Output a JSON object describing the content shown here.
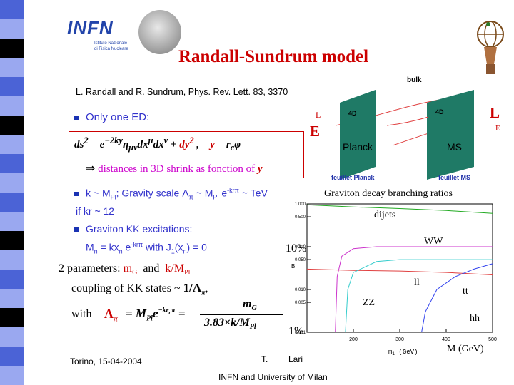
{
  "header": {
    "logo_letters": "INFN",
    "logo_subtitle_1": "Istituto Nazionale",
    "logo_subtitle_2": "di Fisica Nucleare",
    "title": "Randall-Sundrum model"
  },
  "colors": {
    "stripe_light": "#9aa8f0",
    "stripe_mid": "#4b63d6",
    "stripe_black": "#000000",
    "title": "#cc0000",
    "body_text": "#3333cc",
    "highlight": "#cc00cc"
  },
  "reference": "L. Randall and R. Sundrum, Phys. Rev. Lett. 83, 3370",
  "bullets": {
    "only_one_ed": "Only one ED:",
    "distances_note": "distances in 3D shrink as fonction of",
    "distances_var": "y",
    "k_line_a": "k ~ M",
    "k_line_b": "Pl",
    "k_line_c": ";  Gravity scale Λ",
    "k_line_d": "π",
    "k_line_e": " ~ M",
    "k_line_f": "Pl",
    "k_line_g": " e",
    "k_line_h": "-krπ",
    "k_line_i": " ~ TeV",
    "if_kr": "if kr ~ 12",
    "graviton_kk": "Graviton KK excitations:",
    "mn_a": "M",
    "mn_b": "n",
    "mn_c": " = kx",
    "mn_d": "n",
    "mn_e": " e",
    "mn_f": "-krπ",
    "mn_g": "  with J",
    "mn_h": "1",
    "mn_i": "(x",
    "mn_j": "n",
    "mn_k": ") = 0"
  },
  "params": {
    "label": "2 parameters:",
    "p1": "m",
    "p1_sub": "G",
    "and": "and",
    "p2a": "k/M",
    "p2_sub": "Pl",
    "coupling": "coupling of KK states ~",
    "coupling_frac": "1/Λ",
    "coupling_sub": "π",
    "coupling_tail": ",",
    "with": "with",
    "num": "m",
    "num_sub": "G",
    "den": "3.83×k/M",
    "den_sub": "Pl"
  },
  "diagram": {
    "bulk": "bulk",
    "left_L": "L",
    "left_E": "E",
    "right_L": "L",
    "right_E": "E",
    "brane_left_tag": "4D",
    "brane_right_tag": "4D",
    "planck": "Planck",
    "ms": "MS",
    "feuillet_planck": "feuillet Planck",
    "feuillet_ms": "feuillet MS"
  },
  "chart_data": {
    "type": "line",
    "title": "Graviton decay branching ratios",
    "xlabel": "m",
    "xlabel_sub": "1",
    "xlabel_unit": " (GeV)",
    "ylabel": "B",
    "xlim": [
      100,
      500
    ],
    "ylim_log": [
      0.001,
      1.0
    ],
    "x_ticks": [
      "200",
      "300",
      "400",
      "500"
    ],
    "y_ticks": [
      "1.000",
      "0.500",
      "0.100",
      "0.050",
      "0.010",
      "0.005",
      "0.001"
    ],
    "annot_10pct": "10%",
    "annot_1pct": "1%",
    "annot_mass": "M (GeV)",
    "series": [
      {
        "name": "dijets",
        "color": "#22aa22",
        "x": [
          100,
          200,
          300,
          400,
          500
        ],
        "y": [
          0.95,
          0.85,
          0.78,
          0.7,
          0.6
        ]
      },
      {
        "name": "WW",
        "color": "#cc33cc",
        "x": [
          161,
          165,
          175,
          200,
          250,
          300,
          400,
          500
        ],
        "y": [
          0.001,
          0.02,
          0.06,
          0.09,
          0.1,
          0.1,
          0.1,
          0.1
        ]
      },
      {
        "name": "ll",
        "color": "#e04040",
        "x": [
          100,
          200,
          300,
          400,
          500
        ],
        "y": [
          0.03,
          0.028,
          0.027,
          0.025,
          0.022
        ]
      },
      {
        "name": "ZZ",
        "color": "#33cccc",
        "x": [
          183,
          188,
          200,
          250,
          300,
          400,
          500
        ],
        "y": [
          0.001,
          0.01,
          0.025,
          0.045,
          0.05,
          0.05,
          0.05
        ]
      },
      {
        "name": "tt",
        "color": "#3344ee",
        "x": [
          347,
          355,
          380,
          420,
          460,
          500
        ],
        "y": [
          0.001,
          0.003,
          0.01,
          0.02,
          0.03,
          0.04
        ]
      },
      {
        "name": "hh",
        "color": "#222222",
        "x": [
          100
        ],
        "y": [
          null
        ]
      }
    ]
  },
  "footer": {
    "left": "Torino, 15-04-2004",
    "center_a": "T.",
    "center_b": "Lari",
    "bottom": "INFN and University of Milan"
  }
}
